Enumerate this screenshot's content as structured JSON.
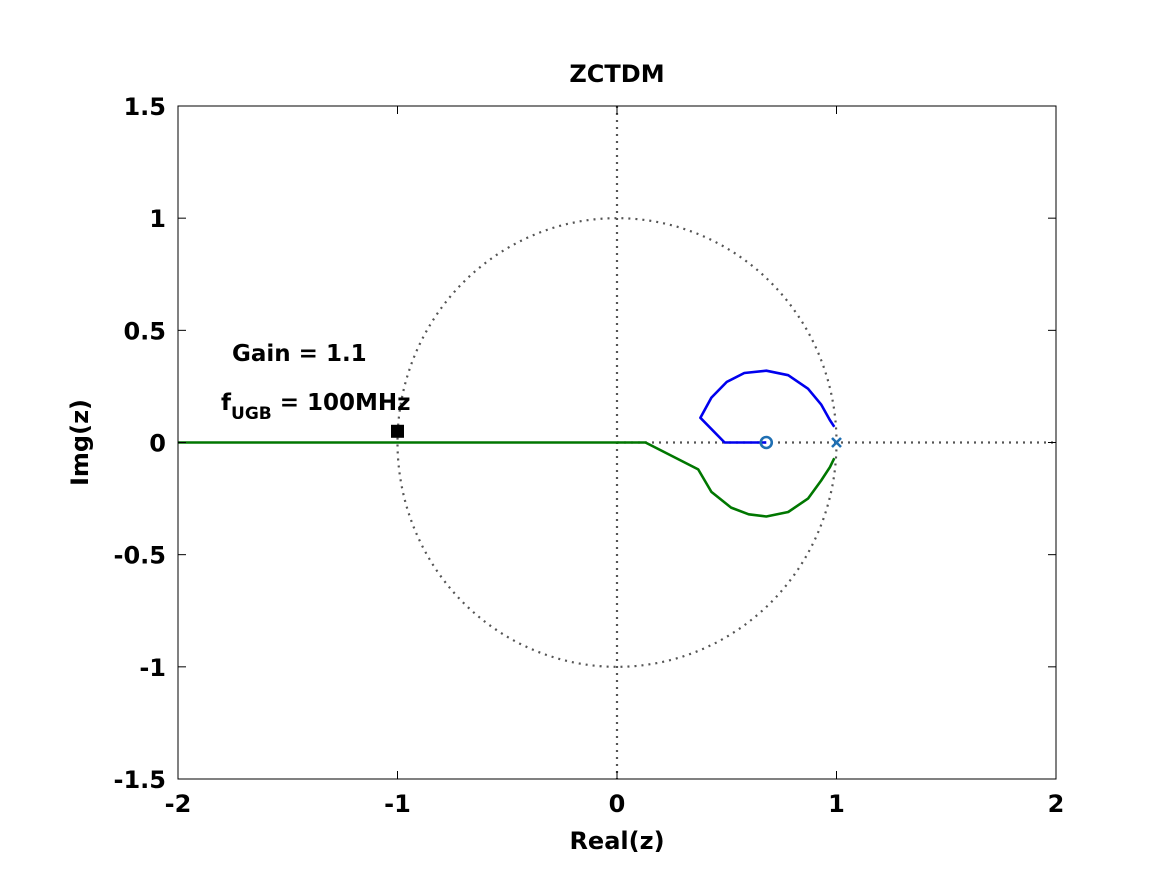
{
  "chart_data": {
    "type": "line",
    "title": "ZCTDM",
    "xlabel": "Real(z)",
    "ylabel": "Img(z)",
    "xlim": [
      -2,
      2
    ],
    "ylim": [
      -1.5,
      1.5
    ],
    "xticks": [
      -2,
      -1,
      0,
      1,
      2
    ],
    "yticks": [
      -1.5,
      -1,
      -0.5,
      0,
      0.5,
      1,
      1.5
    ],
    "xtick_labels": [
      "-2",
      "-1",
      "0",
      "1",
      "2"
    ],
    "ytick_labels": [
      "-1.5",
      "-1",
      "-0.5",
      "0",
      "0.5",
      "1",
      "1.5"
    ],
    "grid": false,
    "reference_lines": {
      "unit_circle": {
        "center": [
          0,
          0
        ],
        "radius": 1,
        "style": "dotted",
        "color": "#555555"
      },
      "real_axis": {
        "style": "dotted",
        "color": "#555555",
        "from_x": 0,
        "to_x": 2
      },
      "imag_axis": {
        "style": "dotted",
        "color": "#555555"
      }
    },
    "series": [
      {
        "color": "#0000ee",
        "points": [
          [
            0.68,
            0.0
          ],
          [
            0.49,
            0.0
          ],
          [
            0.38,
            0.11
          ],
          [
            0.43,
            0.2
          ],
          [
            0.5,
            0.27
          ],
          [
            0.58,
            0.31
          ],
          [
            0.68,
            0.32
          ],
          [
            0.78,
            0.3
          ],
          [
            0.87,
            0.24
          ],
          [
            0.93,
            0.17
          ],
          [
            0.97,
            0.1
          ],
          [
            0.99,
            0.07
          ]
        ]
      },
      {
        "color": "#007700",
        "points": [
          [
            -2.0,
            0.0
          ],
          [
            0.13,
            0.0
          ],
          [
            0.37,
            -0.12
          ],
          [
            0.43,
            -0.22
          ],
          [
            0.52,
            -0.29
          ],
          [
            0.6,
            -0.32
          ],
          [
            0.68,
            -0.33
          ],
          [
            0.78,
            -0.31
          ],
          [
            0.87,
            -0.25
          ],
          [
            0.93,
            -0.17
          ],
          [
            0.97,
            -0.11
          ],
          [
            0.99,
            -0.07
          ]
        ]
      }
    ],
    "markers": [
      {
        "type": "zero",
        "shape": "circle",
        "x": 0.68,
        "y": 0.0,
        "color": "#1f6fb3"
      },
      {
        "type": "pole",
        "shape": "x",
        "x": 1.0,
        "y": 0.0,
        "color": "#1f6fb3"
      },
      {
        "type": "gain-point",
        "shape": "square",
        "x": -1.0,
        "y": 0.05,
        "color": "#000000"
      }
    ],
    "annotations": {
      "gain": "Gain = 1.1",
      "fugb_main": "f",
      "fugb_sub": "UGB",
      "fugb_value": " = 100MHz"
    }
  }
}
